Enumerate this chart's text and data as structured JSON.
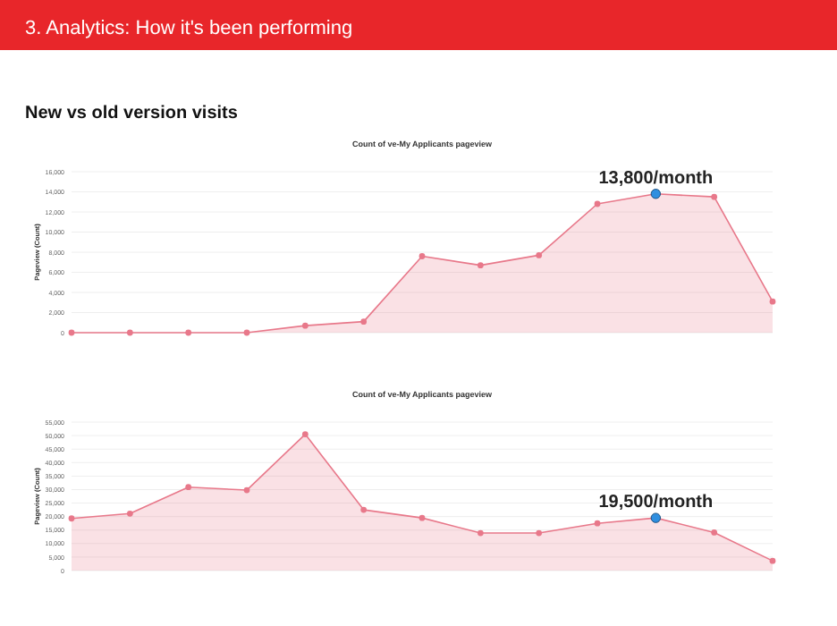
{
  "chart_data": [
    {
      "type": "area",
      "title": "Count of ve-My Applicants pageview",
      "ylabel": "Pageview (Count)",
      "annotations": [
        "3. Analytics: How it's been performing",
        "New vs old version visits",
        {
          "text": "13,800/month",
          "y": 13800
        }
      ],
      "categories": [
        null,
        null,
        null,
        null,
        null,
        null,
        null,
        null,
        null,
        null,
        null,
        null,
        null
      ],
      "series": [
        {
          "color": "#e8788a",
          "values": [
            0,
            0,
            0,
            0,
            700,
            1100,
            7600,
            6700,
            7700,
            12800,
            13800,
            13500,
            3100
          ]
        }
      ],
      "ylim": [
        0,
        16000
      ],
      "yticks": [
        0,
        {
          "value": 2000,
          "label": "2,000"
        },
        {
          "value": 4000,
          "label": "4,000"
        },
        {
          "value": 6000,
          "label": "6,000"
        },
        {
          "value": 8000,
          "label": "8,000"
        },
        {
          "value": 10000,
          "label": "10,000"
        },
        {
          "value": 12000,
          "label": "12,000"
        },
        {
          "value": 14000,
          "label": "14,000"
        },
        {
          "value": 16000,
          "label": "16,000"
        }
      ],
      "grid": "y",
      "marker": "circle"
    },
    {
      "type": "area",
      "title": "Count of ve-My Applicants pageview",
      "ylabel": "Pageview (Count)",
      "annotations": [
        {
          "text": "19,500/month",
          "y": 19500
        }
      ],
      "categories": [
        null,
        null,
        null,
        null,
        null,
        null,
        null,
        null,
        null,
        null,
        null,
        null,
        null
      ],
      "series": [
        {
          "color": "#e8788a",
          "values": [
            19300,
            21100,
            30900,
            29800,
            50500,
            22500,
            19500,
            13900,
            13900,
            17500,
            19500,
            14100,
            3600
          ]
        }
      ],
      "ylim": [
        0,
        55000
      ],
      "yticks": [
        0,
        {
          "value": 5000,
          "label": "5,000"
        },
        {
          "value": 10000,
          "label": "10,000"
        },
        {
          "value": 15000,
          "label": "15,000"
        },
        {
          "value": 20000,
          "label": "20,000"
        },
        {
          "value": 25000,
          "label": "25,000"
        },
        {
          "value": 30000,
          "label": "30,000"
        },
        {
          "value": 35000,
          "label": "35,000"
        },
        {
          "value": 40000,
          "label": "40,000"
        },
        {
          "value": 45000,
          "label": "45,000"
        },
        {
          "value": 50000,
          "label": "50,000"
        },
        {
          "value": 55000,
          "label": "55,000"
        }
      ],
      "grid": "y",
      "marker": "circle"
    }
  ]
}
